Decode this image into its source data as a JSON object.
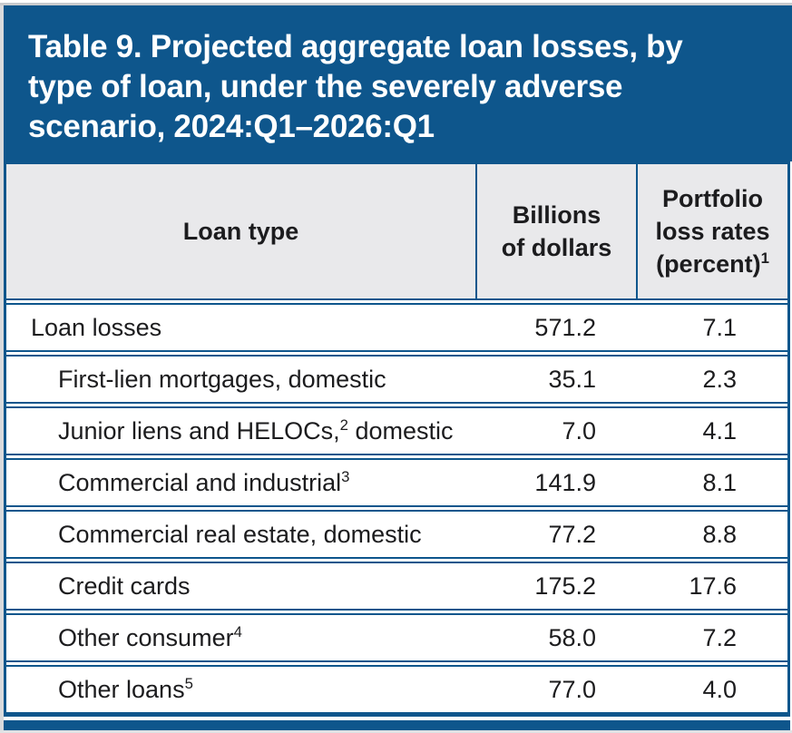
{
  "colors": {
    "brand_blue": "#0e568c",
    "header_bg": "#e9e9eb",
    "text": "#1c1c1e",
    "title_text": "#ffffff"
  },
  "title": {
    "lines": [
      "Table 9. Projected aggregate loan losses, by",
      "type of loan, under the severely adverse",
      "scenario, 2024:Q1–2026:Q1"
    ]
  },
  "table": {
    "columns": [
      {
        "line1": "Loan type"
      },
      {
        "line1": "Billions",
        "line2": "of dollars"
      },
      {
        "line1": "Portfolio",
        "line2": "loss rates",
        "line3": "(percent)",
        "sup": "1"
      }
    ],
    "rows": [
      {
        "label": "Loan losses",
        "sup": "",
        "post": "",
        "billions": "571.2",
        "rate": "7.1"
      },
      {
        "label": "First-lien mortgages, domestic",
        "sup": "",
        "post": "",
        "billions": "35.1",
        "rate": "2.3"
      },
      {
        "label": "Junior liens and HELOCs,",
        "sup": "2",
        "post": " domestic",
        "billions": "7.0",
        "rate": "4.1"
      },
      {
        "label": "Commercial and industrial",
        "sup": "3",
        "post": "",
        "billions": "141.9",
        "rate": "8.1"
      },
      {
        "label": "Commercial real estate, domestic",
        "sup": "",
        "post": "",
        "billions": "77.2",
        "rate": "8.8"
      },
      {
        "label": "Credit cards",
        "sup": "",
        "post": "",
        "billions": "175.2",
        "rate": "17.6"
      },
      {
        "label": "Other consumer",
        "sup": "4",
        "post": "",
        "billions": "58.0",
        "rate": "7.2"
      },
      {
        "label": "Other loans",
        "sup": "5",
        "post": "",
        "billions": "77.0",
        "rate": "4.0"
      }
    ]
  }
}
